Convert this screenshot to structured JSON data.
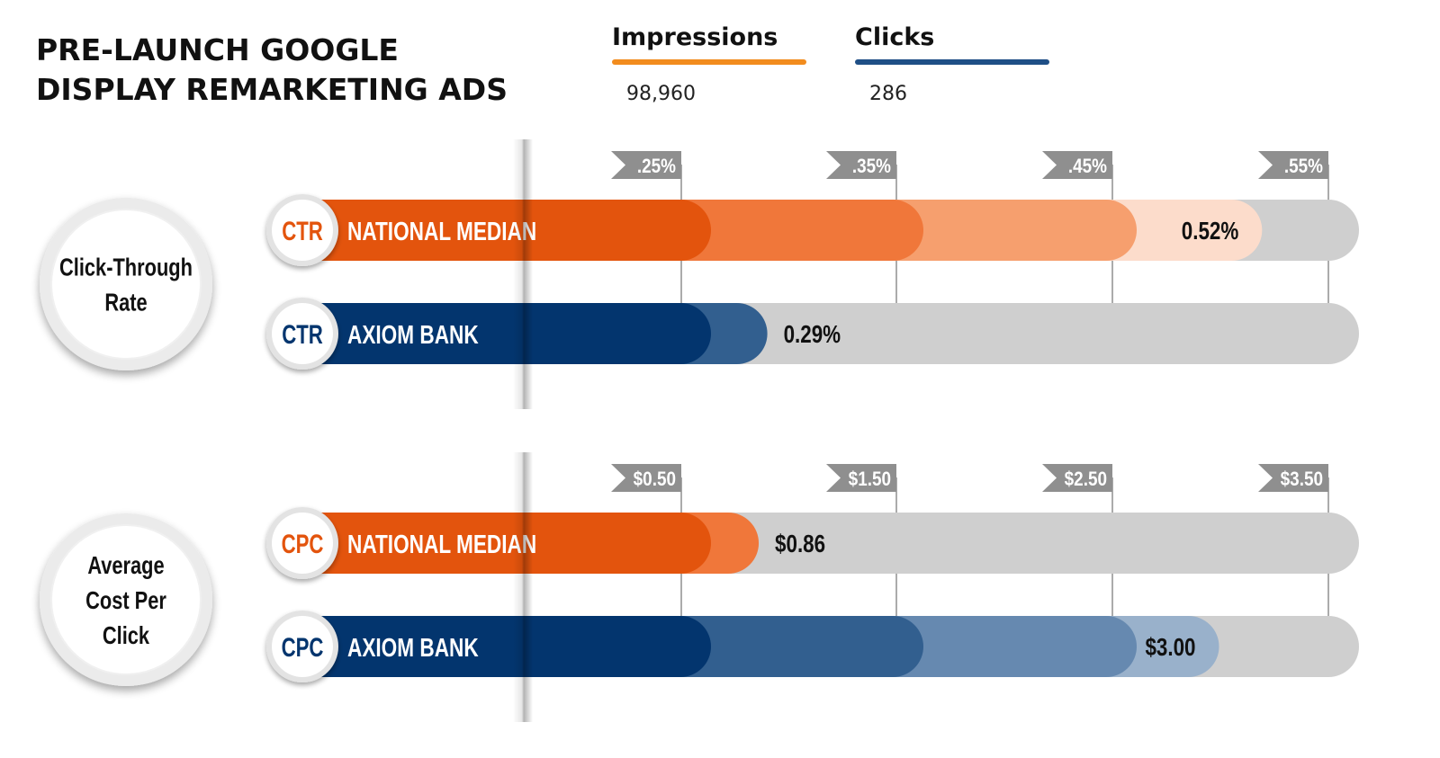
{
  "title": {
    "line1": "PRE-LAUNCH GOOGLE",
    "line2": "DISPLAY REMARKETING ADS"
  },
  "summary": {
    "impressions": {
      "label": "Impressions",
      "value": "98,960",
      "color": "#F28C1E"
    },
    "clicks": {
      "label": "Clicks",
      "value": "286",
      "color": "#1F4F86"
    }
  },
  "colors": {
    "orange": [
      "#E3540D",
      "#F0773A",
      "#F69F6E",
      "#FCDCCB"
    ],
    "blue": [
      "#03356E",
      "#325F8F",
      "#6689B0",
      "#99B1CB"
    ],
    "track": "#CFCFCF",
    "marker": "#8F8F8F"
  },
  "chart_data": [
    {
      "type": "bar",
      "metric_label": "Click-Through Rate",
      "metric_lines": [
        "Click-Through",
        "Rate"
      ],
      "ticks": [
        ".25%",
        ".35%",
        ".45%",
        ".55%"
      ],
      "tick_values": [
        0.25,
        0.35,
        0.45,
        0.55
      ],
      "unit": "%",
      "series": [
        {
          "name": "NATIONAL MEDIAN",
          "abbr": "CTR",
          "value": 0.52,
          "label": "0.52%",
          "palette": "orange"
        },
        {
          "name": "AXIOM BANK",
          "abbr": "CTR",
          "value": 0.29,
          "label": "0.29%",
          "palette": "blue"
        }
      ]
    },
    {
      "type": "bar",
      "metric_label": "Average Cost Per Click",
      "metric_lines": [
        "Average",
        "Cost Per",
        "Click"
      ],
      "ticks": [
        "$0.50",
        "$1.50",
        "$2.50",
        "$3.50"
      ],
      "tick_values": [
        0.5,
        1.5,
        2.5,
        3.5
      ],
      "unit": "$",
      "series": [
        {
          "name": "NATIONAL MEDIAN",
          "abbr": "CPC",
          "value": 0.86,
          "label": "$0.86",
          "palette": "orange"
        },
        {
          "name": "AXIOM BANK",
          "abbr": "CPC",
          "value": 3.0,
          "label": "$3.00",
          "palette": "blue"
        }
      ]
    }
  ]
}
